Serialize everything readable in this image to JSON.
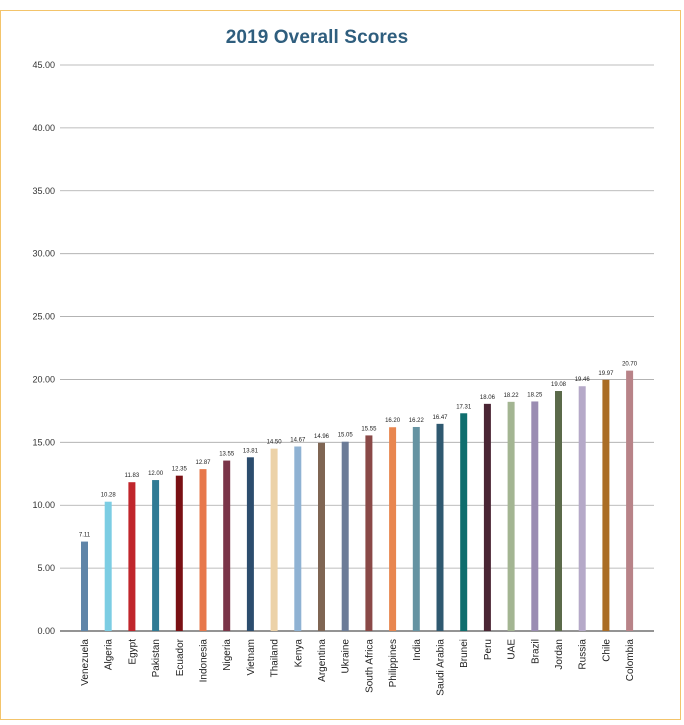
{
  "chart_data": {
    "type": "bar",
    "title": "2019 Overall Scores",
    "xlabel": "",
    "ylabel": "",
    "ylim": [
      0,
      45
    ],
    "ytick_labels": [
      "0.00",
      "5.00",
      "10.00",
      "15.00",
      "20.00",
      "25.00",
      "30.00",
      "35.00",
      "40.00",
      "45.00"
    ],
    "grid": true,
    "legend": "none",
    "categories": [
      "Venezuela",
      "Algeria",
      "Egypt",
      "Pakistan",
      "Ecuador",
      "Indonesia",
      "Nigeria",
      "Vietnam",
      "Thailand",
      "Kenya",
      "Argentina",
      "Ukraine",
      "South Africa",
      "Philippines",
      "India",
      "Saudi Arabia",
      "Brunei",
      "Peru",
      "UAE",
      "Brazil",
      "Jordan",
      "Russia",
      "Chile",
      "Colombia"
    ],
    "values": [
      7.11,
      10.28,
      11.83,
      12.0,
      12.35,
      12.87,
      13.55,
      13.81,
      14.5,
      14.67,
      14.96,
      15.05,
      15.55,
      16.2,
      16.22,
      16.47,
      17.31,
      18.06,
      18.22,
      18.25,
      19.08,
      19.46,
      19.97,
      20.7
    ],
    "value_labels": [
      "7.11",
      "10.28",
      "11.83",
      "12.00",
      "12.35",
      "12.87",
      "13.55",
      "13.81",
      "14.50",
      "14.67",
      "14.96",
      "15.05",
      "15.55",
      "16.20",
      "16.22",
      "16.47",
      "17.31",
      "18.06",
      "18.22",
      "18.25",
      "19.08",
      "19.46",
      "19.97",
      "20.70"
    ],
    "colors": [
      "#5f85a8",
      "#7ccde3",
      "#c0262c",
      "#2f7a94",
      "#7a1014",
      "#e7784b",
      "#7a3448",
      "#2c4d6e",
      "#ecd2a8",
      "#8fb2d3",
      "#7f6553",
      "#6c7c97",
      "#8a4947",
      "#e8864f",
      "#6593a2",
      "#2f5970",
      "#0f6e6e",
      "#4a2534",
      "#a3b592",
      "#9a8cb2",
      "#5b6a4a",
      "#b5a9c8",
      "#aa6d25",
      "#b88388"
    ]
  }
}
